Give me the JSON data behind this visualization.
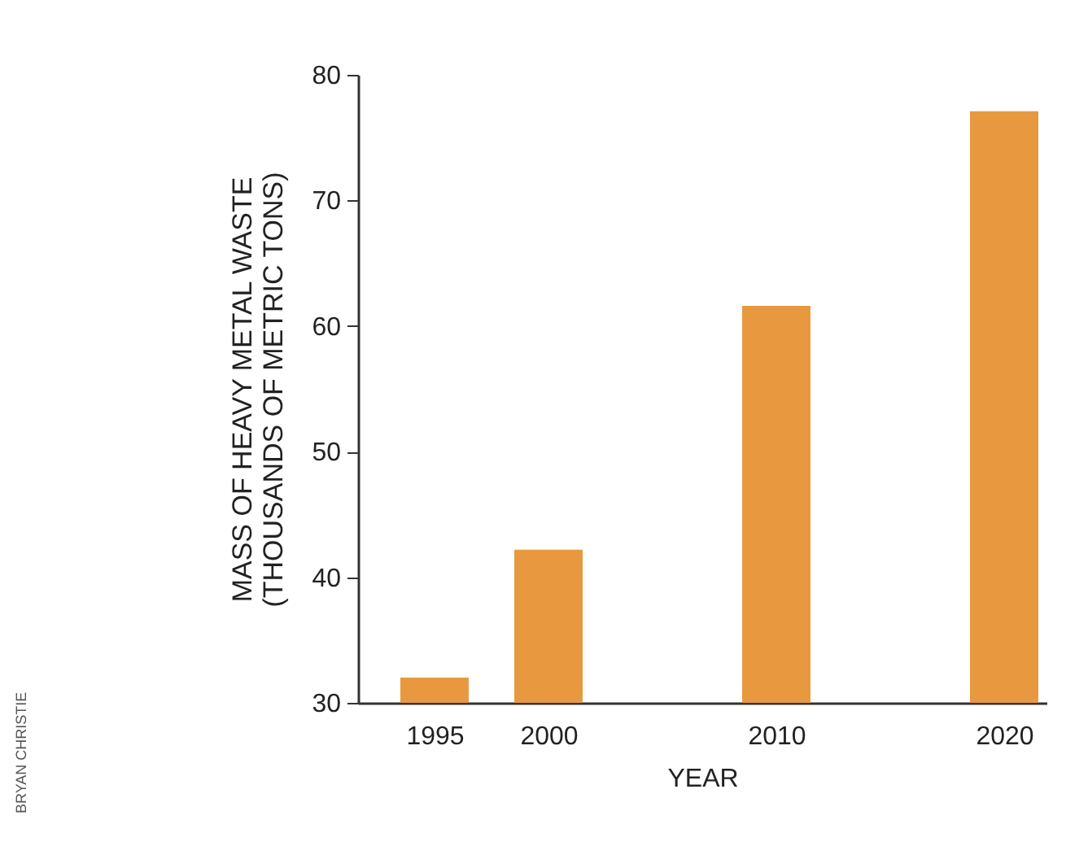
{
  "chart_data": {
    "type": "bar",
    "x": [
      1995,
      2000,
      2010,
      2020
    ],
    "values": [
      32,
      42.2,
      61.6,
      77.1
    ],
    "color": "#e8993f",
    "xlim": [
      1992,
      2021.5
    ],
    "xticks": [
      1995,
      2000,
      2010,
      2020
    ],
    "ylim": [
      30,
      80
    ],
    "yticks": [
      30,
      40,
      50,
      60,
      70,
      80
    ],
    "xlabel": "YEAR",
    "ylabel": "MASS OF HEAVY METAL WASTE\n(THOUSANDS OF METRIC TONS)",
    "annotations": [
      "BRYAN CHRISTIE"
    ],
    "grid": false
  }
}
